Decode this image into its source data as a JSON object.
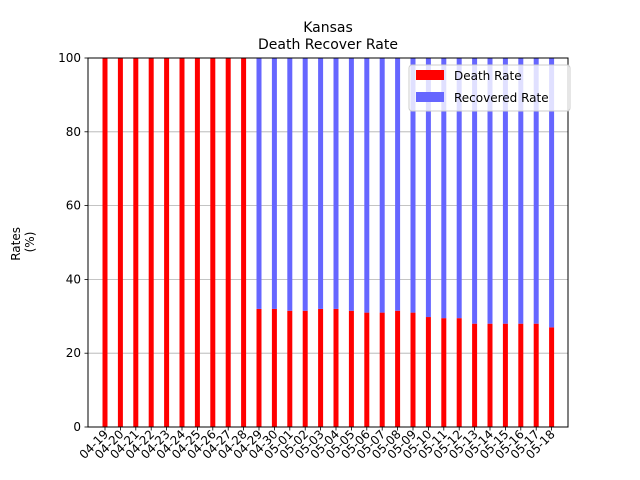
{
  "chart_data": {
    "type": "bar",
    "stacked": true,
    "title": "Kansas",
    "subtitle": "Death Recover Rate",
    "xlabel": "",
    "ylabel": "Rates\n(%)",
    "ylim": [
      0,
      100
    ],
    "yticks": [
      0,
      20,
      40,
      60,
      80,
      100
    ],
    "grid": "y",
    "legend_position": "top-right",
    "categories": [
      "04-19",
      "04-20",
      "04-21",
      "04-22",
      "04-23",
      "04-24",
      "04-25",
      "04-26",
      "04-27",
      "04-28",
      "04-29",
      "04-30",
      "05-01",
      "05-02",
      "05-03",
      "05-04",
      "05-05",
      "05-06",
      "05-07",
      "05-08",
      "05-09",
      "05-10",
      "05-11",
      "05-12",
      "05-13",
      "05-14",
      "05-15",
      "05-16",
      "05-17",
      "05-18"
    ],
    "series": [
      {
        "name": "Death Rate",
        "color": "#ff0000",
        "values": [
          100,
          100,
          100,
          100,
          100,
          100,
          100,
          100,
          100,
          100,
          32,
          32,
          31.5,
          31.5,
          32,
          32,
          31.5,
          31,
          31,
          31.5,
          31,
          29.8,
          29.5,
          29.5,
          28,
          28,
          28,
          28,
          28,
          27
        ]
      },
      {
        "name": "Recovered Rate",
        "color": "#6666ff",
        "values": [
          0,
          0,
          0,
          0,
          0,
          0,
          0,
          0,
          0,
          0,
          68,
          68,
          68.5,
          68.5,
          68,
          68,
          68.5,
          69,
          69,
          68.5,
          69,
          70.2,
          70.5,
          70.5,
          72,
          72,
          72,
          72,
          72,
          73
        ]
      }
    ]
  }
}
